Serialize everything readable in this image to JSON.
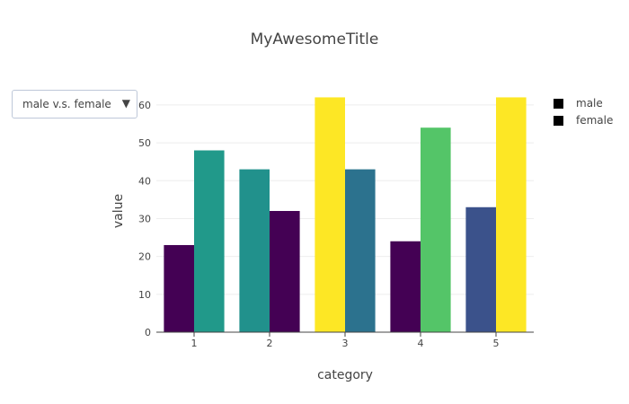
{
  "title": "MyAwesomeTitle",
  "dropdown": {
    "selected": "male v.s. female",
    "arrow_icon": "triangle-down-icon"
  },
  "legend": [
    {
      "name": "male",
      "color": "#000000"
    },
    {
      "name": "female",
      "color": "#000000"
    }
  ],
  "chart_data": {
    "type": "bar",
    "title": "MyAwesomeTitle",
    "xlabel": "category",
    "ylabel": "value",
    "categories": [
      "1",
      "2",
      "3",
      "4",
      "5"
    ],
    "ylim": [
      0,
      64
    ],
    "yticks": [
      0,
      10,
      20,
      30,
      40,
      50,
      60
    ],
    "grid": true,
    "legend_position": "top-right",
    "series": [
      {
        "name": "male",
        "values": [
          23,
          43,
          62,
          24,
          33
        ],
        "colors": [
          "#440154",
          "#21918c",
          "#fde725",
          "#440154",
          "#3b528b"
        ]
      },
      {
        "name": "female",
        "values": [
          48,
          32,
          43,
          54,
          62
        ],
        "colors": [
          "#21998a",
          "#440154",
          "#2c728e",
          "#54c568",
          "#fde725"
        ]
      }
    ]
  }
}
